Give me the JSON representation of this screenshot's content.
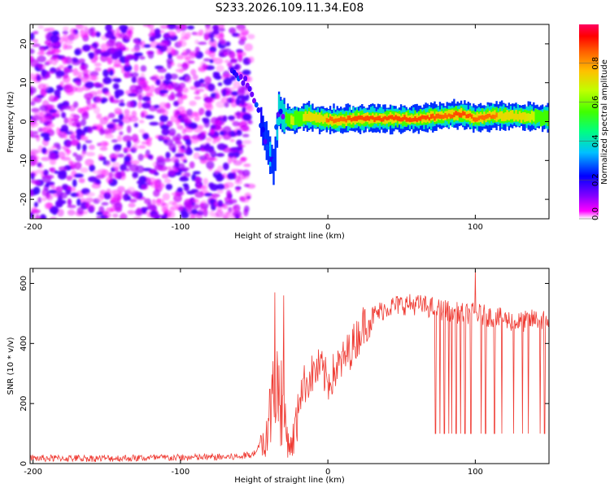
{
  "title": "S233.2026.109.11.34.E08",
  "chart_data": [
    {
      "type": "heatmap",
      "title": "S233.2026.109.11.34.E08",
      "xlabel": "Height of straight line (km)",
      "ylabel": "Frequency (Hz)",
      "xlim": [
        -202,
        150
      ],
      "ylim": [
        -25,
        25
      ],
      "xticks": [
        -200,
        -100,
        0,
        100
      ],
      "yticks": [
        -20,
        -10,
        0,
        10,
        20
      ],
      "colorbar": {
        "label": "Normalized spectral amplitude",
        "range": [
          0,
          1
        ],
        "ticks": [
          0.0,
          0.2,
          0.4,
          0.6,
          0.8
        ],
        "tick_labels": [
          "0.0",
          "0.2",
          "0.4",
          "0.6",
          "0.8"
        ],
        "colors": [
          "#ffffff",
          "#ff00ff",
          "#8000ff",
          "#0000ff",
          "#00c0ff",
          "#00ff80",
          "#40ff00",
          "#c0ff00",
          "#ffc000",
          "#ff6000",
          "#ff0000",
          "#ff0060"
        ]
      },
      "noise_region": {
        "x_range": [
          -202,
          -58
        ],
        "y_range": [
          -25,
          25
        ],
        "amplitude_range": [
          0.0,
          0.15
        ]
      },
      "signal_track": {
        "height_km": [
          -65,
          -55,
          -48,
          -44,
          -40,
          -37,
          -34,
          -30,
          -25,
          -20,
          -15,
          -10,
          -5,
          0,
          10,
          20,
          40,
          60,
          80,
          90,
          100,
          110,
          120,
          150
        ],
        "freq_hz": [
          13,
          10,
          4,
          -3,
          -8,
          -12,
          3,
          1,
          0.5,
          1,
          1.5,
          1,
          0.5,
          0.5,
          0.5,
          0.8,
          0.8,
          0.8,
          1.5,
          2,
          0.8,
          1.5,
          1.5,
          1
        ],
        "peak_amplitude": [
          0.05,
          0.08,
          0.15,
          0.25,
          0.35,
          0.3,
          0.4,
          0.5,
          0.7,
          0.6,
          0.75,
          0.8,
          0.8,
          0.85,
          0.85,
          0.9,
          0.9,
          0.9,
          0.85,
          0.9,
          0.85,
          0.85,
          0.8,
          0.6
        ]
      }
    },
    {
      "type": "line",
      "xlabel": "Height of straight line (km)",
      "ylabel": "SNR (10 * v/v)",
      "xlim": [
        -202,
        150
      ],
      "ylim": [
        0,
        650
      ],
      "xticks": [
        -200,
        -100,
        0,
        100
      ],
      "yticks": [
        0,
        200,
        400,
        600
      ],
      "series": [
        {
          "name": "SNR",
          "color": "#ef3b33",
          "envelope_x": [
            -202,
            -150,
            -100,
            -60,
            -48,
            -42,
            -38,
            -35,
            -32,
            -30,
            -28,
            -25,
            -22,
            -18,
            -15,
            -10,
            -5,
            0,
            5,
            10,
            15,
            20,
            25,
            30,
            40,
            50,
            60,
            70,
            80,
            90,
            100,
            110,
            120,
            130,
            140,
            150
          ],
          "envelope_y": [
            20,
            20,
            22,
            25,
            40,
            150,
            300,
            400,
            350,
            300,
            150,
            80,
            180,
            250,
            270,
            300,
            320,
            270,
            310,
            340,
            380,
            420,
            470,
            490,
            520,
            530,
            530,
            520,
            510,
            500,
            500,
            490,
            480,
            470,
            480,
            480
          ],
          "noise_amplitude": 12,
          "dropouts_x": [
            73,
            76,
            79,
            82,
            84,
            87,
            90,
            93,
            97,
            100,
            104,
            107,
            113,
            118,
            126,
            132,
            136,
            144,
            147
          ],
          "dropout_y": 100,
          "spikes": [
            {
              "x": -36,
              "y": 570
            },
            {
              "x": -30,
              "y": 560
            },
            {
              "x": 100,
              "y": 645
            }
          ]
        }
      ]
    }
  ]
}
